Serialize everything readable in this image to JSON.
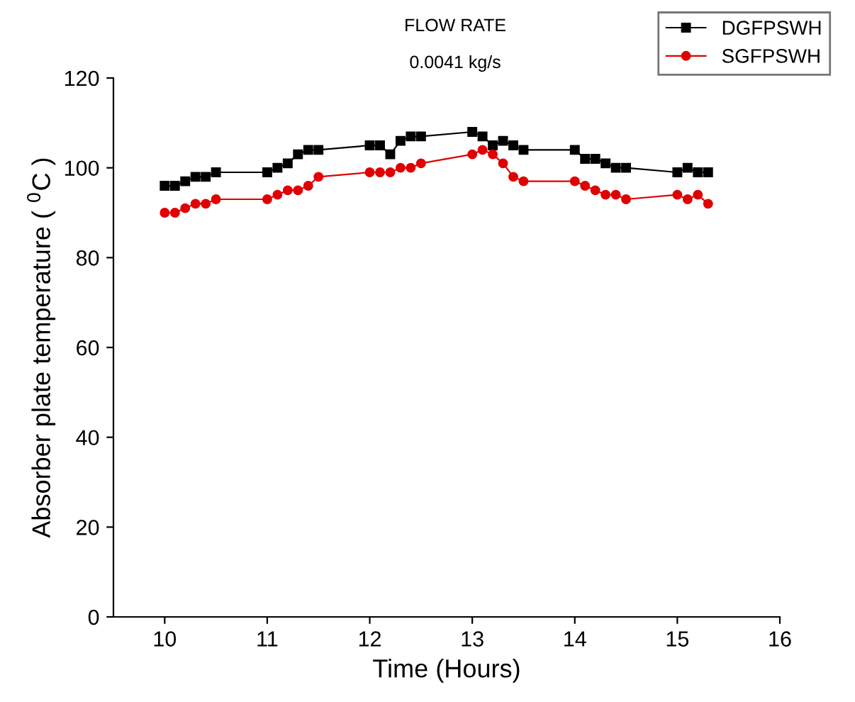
{
  "chart_data": {
    "type": "line",
    "title": "FLOW RATE",
    "subtitle": "0.0041 kg/s",
    "xlabel": "Time (Hours)",
    "ylabel": "Absorber plate temperature ( $^{0}$C )",
    "x": [
      10,
      10.1,
      10.2,
      10.3,
      10.4,
      10.5,
      11,
      11.1,
      11.2,
      11.3,
      11.4,
      11.5,
      12,
      12.1,
      12.2,
      12.3,
      12.4,
      12.5,
      13,
      13.1,
      13.2,
      13.3,
      13.4,
      13.5,
      14,
      14.1,
      14.2,
      14.3,
      14.4,
      14.5,
      15,
      15.1,
      15.2,
      15.3
    ],
    "series": [
      {
        "name": "DGFPSWH",
        "color": "#000000",
        "marker": "square",
        "values": [
          96,
          96,
          97,
          98,
          98,
          99,
          99,
          100,
          101,
          103,
          104,
          104,
          105,
          105,
          103,
          106,
          107,
          107,
          108,
          107,
          105,
          106,
          105,
          104,
          104,
          102,
          102,
          101,
          100,
          100,
          99,
          100,
          99,
          99
        ]
      },
      {
        "name": "SGFPSWH",
        "color": "#e00000",
        "marker": "circle",
        "values": [
          90,
          90,
          91,
          92,
          92,
          93,
          93,
          94,
          95,
          95,
          96,
          98,
          99,
          99,
          99,
          100,
          100,
          101,
          103,
          104,
          103,
          101,
          98,
          97,
          97,
          96,
          95,
          94,
          94,
          93,
          94,
          93,
          94,
          92
        ]
      }
    ],
    "xlim": [
      9.5,
      16
    ],
    "xticks": [
      10,
      11,
      12,
      13,
      14,
      15,
      16
    ],
    "ylim": [
      0,
      120
    ],
    "yticks": [
      0,
      20,
      40,
      60,
      80,
      100,
      120
    ],
    "grid": false,
    "legend": "top right",
    "line_style": "solid"
  }
}
